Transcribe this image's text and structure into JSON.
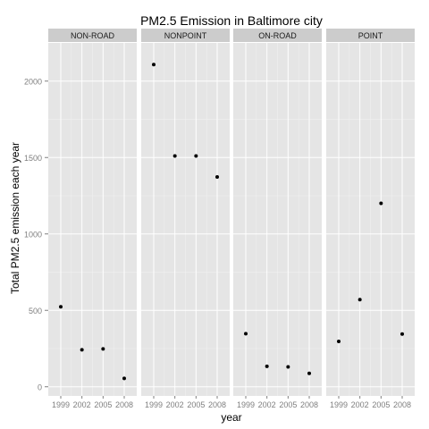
{
  "chart_data": {
    "type": "scatter",
    "title": "PM2.5 Emission in Baltimore city",
    "xlabel": "year",
    "ylabel": "Total PM2.5 emission each year",
    "x_ticks": [
      "1999",
      "2002",
      "2005",
      "2008"
    ],
    "y_ticks": [
      0,
      500,
      1000,
      1500,
      2000
    ],
    "ylim": [
      -60,
      2250
    ],
    "grid": true,
    "facets": [
      {
        "name": "NON-ROAD",
        "x": [
          1999,
          2002,
          2005,
          2008
        ],
        "y": [
          523,
          242,
          248,
          55
        ]
      },
      {
        "name": "NONPOINT",
        "x": [
          1999,
          2002,
          2005,
          2008
        ],
        "y": [
          2108,
          1510,
          1510,
          1373
        ]
      },
      {
        "name": "ON-ROAD",
        "x": [
          1999,
          2002,
          2005,
          2008
        ],
        "y": [
          347,
          134,
          130,
          88
        ]
      },
      {
        "name": "POINT",
        "x": [
          1999,
          2002,
          2005,
          2008
        ],
        "y": [
          297,
          570,
          1200,
          345
        ]
      }
    ],
    "colors": {
      "panel_bg": "#e5e5e5",
      "strip_bg": "#cccccc",
      "grid_major": "#ffffff",
      "grid_minor": "#f2f2f2",
      "point": "#000000",
      "axis_text": "#7f7f7f"
    }
  }
}
